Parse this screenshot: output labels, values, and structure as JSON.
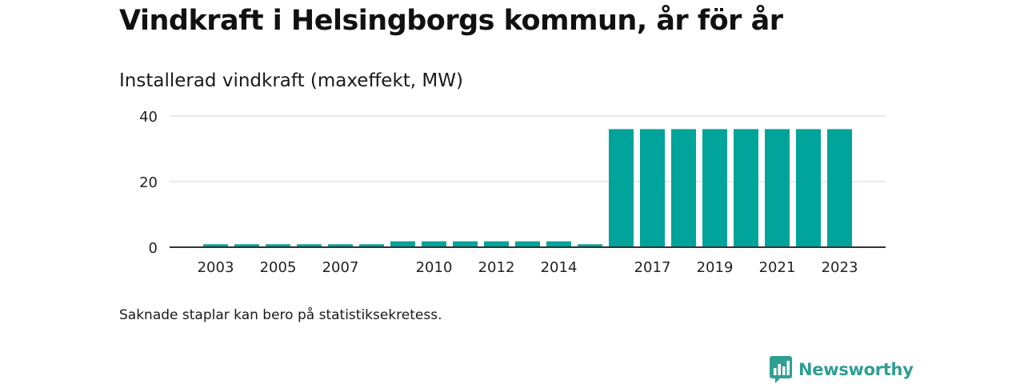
{
  "header": {
    "title": "Vindkraft i Helsingborgs kommun, år för år",
    "subtitle": "Installerad vindkraft (maxeffekt, MW)"
  },
  "footer": {
    "note": "Saknade staplar kan bero på statistiksekretess.",
    "brand": "Newsworthy"
  },
  "colors": {
    "bar": "#00a49a",
    "brand": "#2f9e93",
    "grid": "#dddddd",
    "axis": "#333333"
  },
  "icons": {
    "brand_logo": "bar-chart-speech-bubble-icon"
  },
  "chart_data": {
    "type": "bar",
    "title": "Installerad vindkraft (maxeffekt, MW)",
    "xlabel": "",
    "ylabel": "",
    "categories": [
      "2003",
      "2004",
      "2005",
      "2006",
      "2007",
      "2008",
      "2009",
      "2010",
      "2011",
      "2012",
      "2013",
      "2014",
      "2015",
      "2016",
      "2017",
      "2018",
      "2019",
      "2020",
      "2021",
      "2022",
      "2023"
    ],
    "values": [
      0.9,
      0.9,
      0.9,
      0.9,
      0.9,
      0.9,
      1.8,
      1.8,
      1.8,
      1.8,
      1.8,
      1.8,
      0.9,
      36,
      36,
      36,
      36,
      36,
      36,
      36,
      36
    ],
    "x_tick_labels": [
      "2003",
      "2005",
      "2007",
      "2010",
      "2012",
      "2014",
      "2017",
      "2019",
      "2021",
      "2023"
    ],
    "y_ticks": [
      0,
      20,
      40
    ],
    "ylim": [
      0,
      40
    ],
    "grid": true,
    "legend": "none"
  }
}
